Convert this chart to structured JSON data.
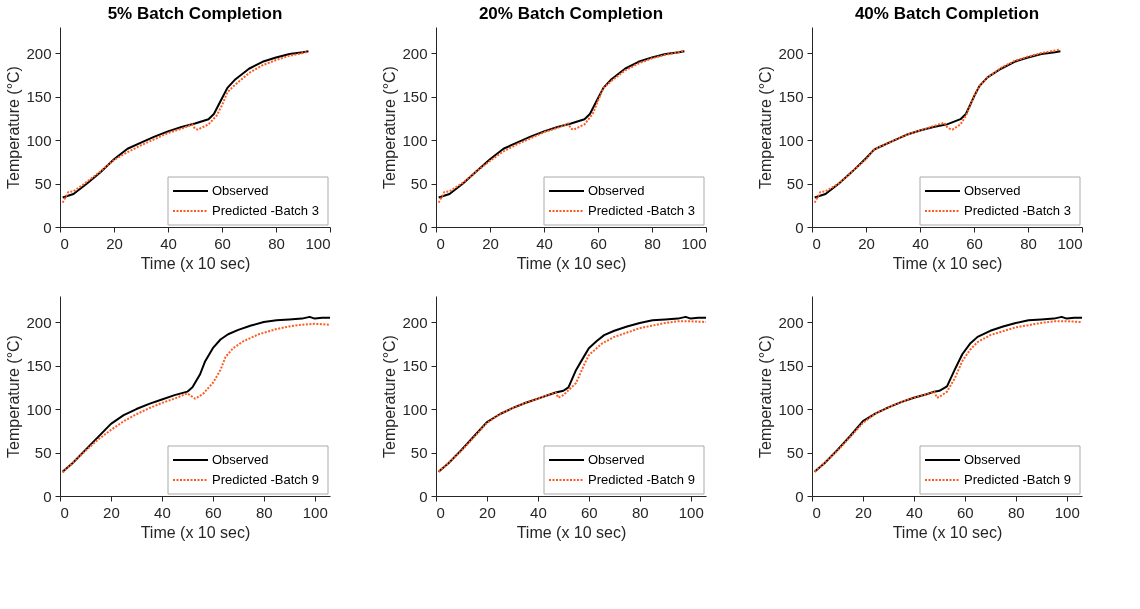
{
  "chart_data": [
    {
      "type": "line",
      "title": "5% Batch Completion",
      "xlabel": "Time (x 10 sec)",
      "ylabel": "Temperature (°C)",
      "xlim": [
        0,
        100
      ],
      "ylim": [
        0,
        230
      ],
      "xticks": [
        0,
        20,
        40,
        60,
        80,
        100
      ],
      "yticks": [
        0,
        50,
        100,
        150,
        200
      ],
      "grid": false,
      "legend": "bottom right",
      "series": [
        {
          "name": "Observed",
          "color": "#000000",
          "line_style": "solid",
          "x": [
            1,
            5,
            10,
            15,
            20,
            25,
            30,
            35,
            40,
            45,
            50,
            55,
            57,
            60,
            62,
            65,
            70,
            75,
            80,
            85,
            90,
            92
          ],
          "values": [
            34,
            38,
            50,
            63,
            78,
            90,
            97,
            104,
            110,
            115,
            119,
            124,
            130,
            148,
            160,
            170,
            182,
            190,
            195,
            199,
            201,
            202
          ]
        },
        {
          "name": "Predicted -Batch 3",
          "color": "#ff5a1f",
          "line_style": "dotted",
          "x": [
            1,
            3,
            5,
            10,
            15,
            20,
            25,
            30,
            35,
            40,
            45,
            49,
            50,
            51,
            55,
            58,
            60,
            62,
            65,
            70,
            75,
            80,
            85,
            90,
            92
          ],
          "values": [
            28,
            40,
            41,
            52,
            64,
            77,
            86,
            94,
            101,
            108,
            113,
            118,
            113,
            112,
            118,
            128,
            140,
            155,
            164,
            177,
            186,
            192,
            197,
            200,
            202
          ]
        }
      ]
    },
    {
      "type": "line",
      "title": "20% Batch Completion",
      "xlabel": "Time (x 10 sec)",
      "ylabel": "Temperature (°C)",
      "xlim": [
        0,
        100
      ],
      "ylim": [
        0,
        230
      ],
      "xticks": [
        0,
        20,
        40,
        60,
        80,
        100
      ],
      "yticks": [
        0,
        50,
        100,
        150,
        200
      ],
      "grid": false,
      "legend": "bottom right",
      "series": [
        {
          "name": "Observed",
          "color": "#000000",
          "line_style": "solid",
          "x": [
            1,
            5,
            10,
            15,
            20,
            25,
            30,
            35,
            40,
            45,
            50,
            55,
            57,
            60,
            62,
            65,
            70,
            75,
            80,
            85,
            90,
            92
          ],
          "values": [
            34,
            38,
            50,
            64,
            78,
            90,
            97,
            104,
            110,
            115,
            119,
            124,
            130,
            148,
            160,
            170,
            182,
            190,
            195,
            199,
            201,
            202
          ]
        },
        {
          "name": "Predicted -Batch 3",
          "color": "#ff5a1f",
          "line_style": "dotted",
          "x": [
            1,
            3,
            5,
            10,
            15,
            20,
            25,
            30,
            35,
            40,
            45,
            49,
            50,
            51,
            55,
            58,
            60,
            62,
            65,
            70,
            75,
            80,
            85,
            90,
            92
          ],
          "values": [
            28,
            40,
            41,
            51,
            64,
            76,
            87,
            95,
            102,
            109,
            114,
            119,
            113,
            112,
            118,
            130,
            145,
            160,
            168,
            180,
            188,
            194,
            198,
            201,
            203
          ]
        }
      ]
    },
    {
      "type": "line",
      "title": "40% Batch Completion",
      "xlabel": "Time (x 10 sec)",
      "ylabel": "Temperature (°C)",
      "xlim": [
        0,
        100
      ],
      "ylim": [
        0,
        230
      ],
      "xticks": [
        0,
        20,
        40,
        60,
        80,
        100
      ],
      "yticks": [
        0,
        50,
        100,
        150,
        200
      ],
      "grid": false,
      "legend": "bottom right",
      "series": [
        {
          "name": "Observed",
          "color": "#000000",
          "line_style": "solid",
          "x": [
            1,
            5,
            10,
            15,
            20,
            23,
            25,
            30,
            35,
            40,
            45,
            50,
            55,
            57,
            60,
            62,
            65,
            70,
            75,
            80,
            85,
            90,
            92
          ],
          "values": [
            34,
            38,
            50,
            64,
            79,
            89,
            92,
            99,
            106,
            111,
            115,
            118,
            124,
            130,
            150,
            162,
            172,
            182,
            190,
            195,
            199,
            201,
            202
          ]
        },
        {
          "name": "Predicted -Batch 3",
          "color": "#ff5a1f",
          "line_style": "dotted",
          "x": [
            1,
            3,
            5,
            10,
            15,
            20,
            23,
            25,
            30,
            35,
            40,
            45,
            49,
            50,
            51,
            52,
            55,
            57,
            60,
            62,
            65,
            70,
            75,
            80,
            85,
            90,
            92
          ],
          "values": [
            28,
            40,
            41,
            50,
            64,
            78,
            89,
            92,
            99,
            106,
            111,
            116,
            120,
            115,
            113,
            112,
            118,
            128,
            150,
            162,
            172,
            183,
            191,
            196,
            200,
            203,
            204
          ]
        }
      ]
    },
    {
      "type": "line",
      "xlabel": "Time (x 10 sec)",
      "ylabel": "Temperature (°C)",
      "xlim": [
        0,
        106
      ],
      "ylim": [
        0,
        230
      ],
      "xticks": [
        0,
        20,
        40,
        60,
        80,
        100
      ],
      "yticks": [
        0,
        50,
        100,
        150,
        200
      ],
      "grid": false,
      "legend": "bottom right",
      "series": [
        {
          "name": "Observed",
          "color": "#000000",
          "line_style": "solid",
          "x": [
            1,
            5,
            10,
            15,
            20,
            25,
            30,
            35,
            40,
            45,
            50,
            52,
            55,
            57,
            60,
            63,
            66,
            70,
            75,
            80,
            85,
            90,
            95,
            98,
            100,
            103,
            106
          ],
          "values": [
            28,
            38,
            53,
            68,
            83,
            93,
            100,
            106,
            111,
            116,
            120,
            125,
            140,
            155,
            170,
            180,
            186,
            191,
            196,
            200,
            202,
            203,
            204,
            206,
            204,
            205,
            205
          ]
        },
        {
          "name": "Predicted -Batch 9",
          "color": "#ff5a1f",
          "line_style": "dotted",
          "x": [
            1,
            5,
            10,
            15,
            20,
            25,
            30,
            35,
            40,
            45,
            50,
            51,
            53,
            56,
            60,
            63,
            65,
            68,
            72,
            78,
            85,
            90,
            95,
            100,
            106
          ],
          "values": [
            27,
            38,
            52,
            65,
            76,
            86,
            94,
            101,
            107,
            112,
            118,
            116,
            112,
            117,
            130,
            145,
            160,
            170,
            178,
            186,
            192,
            195,
            197,
            198,
            197
          ]
        }
      ]
    },
    {
      "type": "line",
      "xlabel": "Time (x 10 sec)",
      "ylabel": "Temperature (°C)",
      "xlim": [
        0,
        106
      ],
      "ylim": [
        0,
        230
      ],
      "xticks": [
        0,
        20,
        40,
        60,
        80,
        100
      ],
      "yticks": [
        0,
        50,
        100,
        150,
        200
      ],
      "grid": false,
      "legend": "bottom right",
      "series": [
        {
          "name": "Observed",
          "color": "#000000",
          "line_style": "solid",
          "x": [
            1,
            5,
            10,
            15,
            20,
            25,
            30,
            35,
            40,
            45,
            47,
            50,
            52,
            55,
            58,
            60,
            63,
            66,
            70,
            75,
            80,
            85,
            90,
            95,
            98,
            100,
            103,
            106
          ],
          "values": [
            28,
            38,
            53,
            69,
            85,
            94,
            101,
            107,
            112,
            117,
            119,
            121,
            125,
            145,
            160,
            170,
            178,
            185,
            190,
            195,
            199,
            202,
            203,
            204,
            206,
            204,
            205,
            205
          ]
        },
        {
          "name": "Predicted -Batch 9",
          "color": "#ff5a1f",
          "line_style": "dotted",
          "x": [
            1,
            5,
            10,
            15,
            20,
            25,
            30,
            35,
            40,
            45,
            47,
            48,
            50,
            55,
            58,
            60,
            65,
            70,
            80,
            90,
            95,
            100,
            106
          ],
          "values": [
            28,
            38,
            52,
            68,
            84,
            94,
            101,
            107,
            112,
            117,
            119,
            113,
            116,
            130,
            150,
            162,
            175,
            183,
            193,
            199,
            201,
            201,
            200
          ]
        }
      ]
    },
    {
      "type": "line",
      "xlabel": "Time (x 10 sec)",
      "ylabel": "Temperature (°C)",
      "xlim": [
        0,
        106
      ],
      "ylim": [
        0,
        230
      ],
      "xticks": [
        0,
        20,
        40,
        60,
        80,
        100
      ],
      "yticks": [
        0,
        50,
        100,
        150,
        200
      ],
      "grid": false,
      "legend": "bottom right",
      "series": [
        {
          "name": "Observed",
          "color": "#000000",
          "line_style": "solid",
          "x": [
            1,
            5,
            10,
            15,
            20,
            25,
            30,
            35,
            40,
            45,
            48,
            50,
            53,
            56,
            59,
            62,
            65,
            70,
            75,
            80,
            85,
            90,
            95,
            98,
            100,
            103,
            106
          ],
          "values": [
            28,
            38,
            53,
            69,
            86,
            95,
            102,
            108,
            113,
            117,
            120,
            121,
            126,
            145,
            163,
            175,
            183,
            190,
            195,
            199,
            202,
            203,
            204,
            206,
            204,
            205,
            205
          ]
        },
        {
          "name": "Predicted -Batch 9",
          "color": "#ff5a1f",
          "line_style": "dotted",
          "x": [
            1,
            5,
            10,
            15,
            20,
            25,
            30,
            35,
            40,
            45,
            48,
            49,
            50,
            53,
            56,
            59,
            62,
            65,
            70,
            80,
            90,
            95,
            100,
            106
          ],
          "values": [
            28,
            38,
            52,
            68,
            84,
            95,
            102,
            108,
            113,
            117,
            120,
            113,
            114,
            120,
            135,
            155,
            168,
            177,
            185,
            194,
            199,
            201,
            201,
            200
          ]
        }
      ]
    }
  ]
}
